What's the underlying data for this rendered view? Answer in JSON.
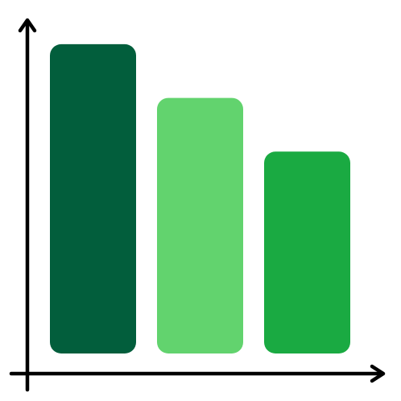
{
  "icon": {
    "name": "bar-chart-icon",
    "bars": [
      {
        "name": "bar-1",
        "level": 0.835,
        "color": "#025E3C"
      },
      {
        "name": "bar-2",
        "level": 0.69,
        "color": "#62D36E"
      },
      {
        "name": "bar-3",
        "level": 0.545,
        "color": "#1AAA42"
      }
    ],
    "axis_color": "#000000"
  }
}
